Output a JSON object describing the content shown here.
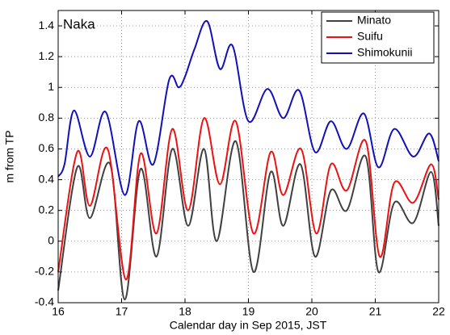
{
  "chart_data": {
    "type": "line",
    "annotation": "Naka",
    "xlabel": "Calendar day in Sep 2015, JST",
    "ylabel": "m from TP",
    "xlim": [
      16,
      22
    ],
    "xticks": [
      16,
      17,
      18,
      19,
      20,
      21,
      22
    ],
    "ylim": [
      -0.4,
      1.5
    ],
    "yticks": [
      -0.4,
      -0.2,
      0,
      0.2,
      0.4,
      0.6,
      0.8,
      1,
      1.2,
      1.4
    ],
    "grid": true,
    "legend": "upper right",
    "series": [
      {
        "name": "Minato",
        "color": "#404040",
        "x": [
          16.0,
          16.3,
          16.5,
          16.82,
          17.05,
          17.3,
          17.55,
          17.8,
          18.05,
          18.3,
          18.5,
          18.8,
          19.08,
          19.35,
          19.55,
          19.82,
          20.05,
          20.3,
          20.55,
          20.85,
          21.05,
          21.3,
          21.6,
          21.88,
          22.0
        ],
        "values": [
          -0.32,
          0.48,
          0.15,
          0.5,
          -0.38,
          0.47,
          -0.1,
          0.6,
          0.1,
          0.6,
          0.0,
          0.65,
          -0.2,
          0.45,
          0.1,
          0.5,
          -0.1,
          0.33,
          0.2,
          0.55,
          -0.2,
          0.25,
          0.12,
          0.45,
          0.1
        ]
      },
      {
        "name": "Suifu",
        "color": "#ee1111",
        "x": [
          16.0,
          16.3,
          16.5,
          16.78,
          17.07,
          17.3,
          17.55,
          17.8,
          18.05,
          18.3,
          18.55,
          18.8,
          19.08,
          19.35,
          19.55,
          19.83,
          20.07,
          20.3,
          20.55,
          20.85,
          21.07,
          21.3,
          21.6,
          21.88,
          22.0
        ],
        "values": [
          -0.2,
          0.58,
          0.23,
          0.6,
          -0.25,
          0.57,
          0.05,
          0.73,
          0.2,
          0.8,
          0.37,
          0.78,
          0.05,
          0.58,
          0.3,
          0.6,
          0.05,
          0.5,
          0.33,
          0.65,
          -0.1,
          0.38,
          0.25,
          0.5,
          0.27
        ]
      },
      {
        "name": "Shimokunii",
        "color": "#1111bb",
        "x": [
          16.0,
          16.1,
          16.25,
          16.5,
          16.75,
          17.05,
          17.27,
          17.5,
          17.75,
          17.9,
          18.0,
          18.15,
          18.35,
          18.55,
          18.75,
          19.0,
          19.3,
          19.55,
          19.8,
          20.05,
          20.3,
          20.55,
          20.82,
          21.05,
          21.3,
          21.6,
          21.85,
          22.0
        ],
        "values": [
          0.42,
          0.5,
          0.85,
          0.55,
          0.84,
          0.3,
          0.78,
          0.5,
          1.05,
          1.0,
          1.07,
          1.25,
          1.43,
          1.12,
          1.27,
          0.78,
          0.99,
          0.8,
          0.98,
          0.58,
          0.78,
          0.6,
          0.83,
          0.48,
          0.73,
          0.55,
          0.7,
          0.52
        ]
      }
    ]
  }
}
